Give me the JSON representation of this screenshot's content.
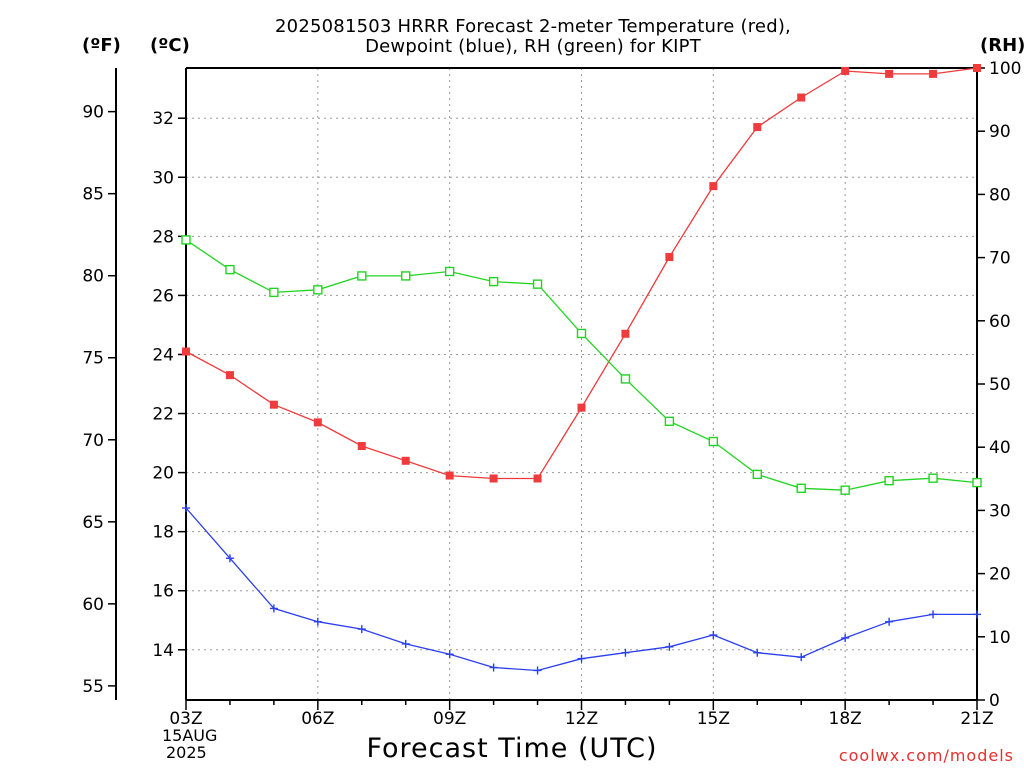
{
  "title": {
    "line1": "2025081503 HRRR Forecast 2-meter Temperature (red),",
    "line2": "Dewpoint (blue), RH (green) for KIPT"
  },
  "units": {
    "f": "(ºF)",
    "c": "(ºC)",
    "rh": "(RH)"
  },
  "xaxis_label": "Forecast Time (UTC)",
  "date_label": {
    "day": "15AUG",
    "year": "2025"
  },
  "credit": "coolwx.com/models",
  "colors": {
    "temperature": "#ef3b3b",
    "dewpoint": "#2b3fef",
    "rh": "#22d422",
    "credit": "#e83030"
  },
  "chart_data": {
    "type": "line",
    "x": [
      "03Z",
      "04Z",
      "05Z",
      "06Z",
      "07Z",
      "08Z",
      "09Z",
      "10Z",
      "11Z",
      "12Z",
      "13Z",
      "14Z",
      "15Z",
      "16Z",
      "17Z",
      "18Z",
      "19Z",
      "20Z",
      "21Z"
    ],
    "x_tick_labels": [
      "03Z",
      "06Z",
      "09Z",
      "12Z",
      "15Z",
      "18Z",
      "21Z"
    ],
    "grid": true,
    "axes": {
      "left_celsius": {
        "ylim": [
          12.3,
          33.7
        ],
        "ticks": [
          14,
          16,
          18,
          20,
          22,
          24,
          26,
          28,
          30,
          32
        ]
      },
      "left_fahrenheit": {
        "ticks": [
          55,
          60,
          65,
          70,
          75,
          80,
          85,
          90
        ]
      },
      "right_rh": {
        "ylim": [
          0,
          100
        ],
        "ticks": [
          0,
          10,
          20,
          30,
          40,
          50,
          60,
          70,
          80,
          90,
          100
        ]
      }
    },
    "series": [
      {
        "name": "Temperature",
        "axis": "left_celsius",
        "marker": "filled-square",
        "values": [
          24.1,
          23.3,
          22.3,
          21.7,
          20.9,
          20.4,
          19.9,
          19.8,
          19.8,
          22.2,
          24.7,
          27.3,
          29.7,
          31.7,
          32.7,
          33.6,
          33.5,
          33.5,
          33.7
        ]
      },
      {
        "name": "Dewpoint",
        "axis": "left_celsius",
        "marker": "plus",
        "values": [
          18.8,
          17.1,
          15.4,
          14.95,
          14.7,
          14.2,
          13.85,
          13.4,
          13.3,
          13.7,
          13.9,
          14.1,
          14.5,
          13.9,
          13.75,
          14.4,
          14.95,
          15.2,
          15.2
        ]
      },
      {
        "name": "RH",
        "axis": "right_rh",
        "marker": "open-square",
        "values": [
          72.8,
          68.1,
          64.5,
          64.9,
          67.1,
          67.1,
          67.8,
          66.2,
          65.8,
          58.0,
          50.8,
          44.1,
          40.9,
          35.7,
          33.5,
          33.2,
          34.7,
          35.1,
          34.4
        ]
      }
    ]
  }
}
